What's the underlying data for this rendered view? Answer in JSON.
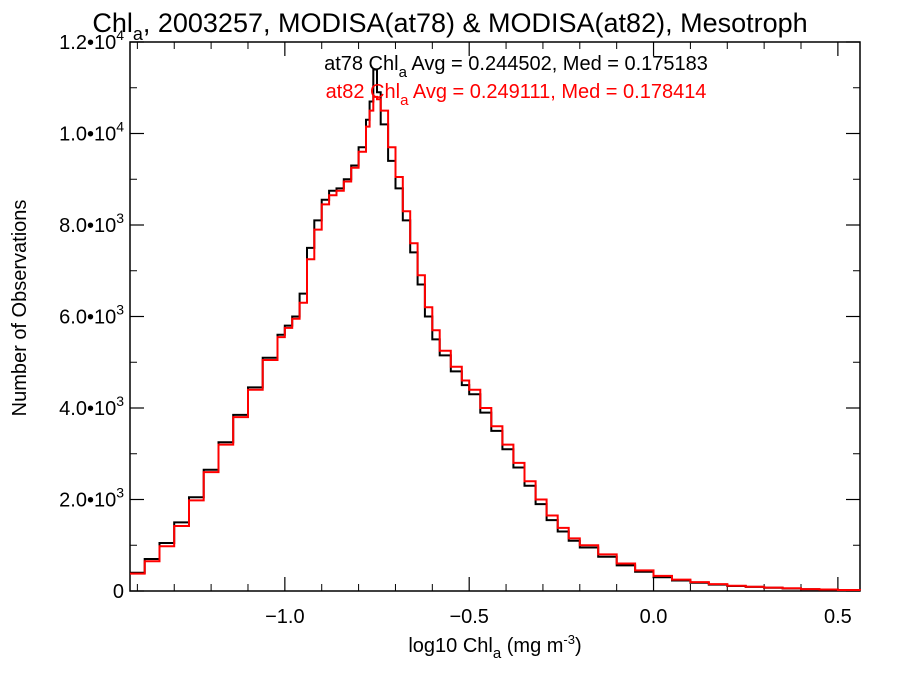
{
  "chart_data": {
    "type": "line",
    "step": true,
    "title": {
      "main": "Chl",
      "sub": "a",
      "rest": ", 2003257, MODISA(at78) & MODISA(at82), Mesotroph"
    },
    "xlabel": {
      "main": "log10 Chl",
      "sub": "a",
      "rest": " (mg m",
      "sup": "-3",
      "end": ")"
    },
    "ylabel": "Number of Observations",
    "xlim": [
      -1.42,
      0.56
    ],
    "ylim": [
      0,
      12000
    ],
    "x_ticks": [
      {
        "value": -1.0,
        "label": "−1.0"
      },
      {
        "value": -0.5,
        "label": "−0.5"
      },
      {
        "value": 0.0,
        "label": "0.0"
      },
      {
        "value": 0.5,
        "label": "0.5"
      }
    ],
    "y_ticks": [
      {
        "value": 0,
        "label": "0",
        "exp": ""
      },
      {
        "value": 2000,
        "label": "2.0•10",
        "exp": "3"
      },
      {
        "value": 4000,
        "label": "4.0•10",
        "exp": "3"
      },
      {
        "value": 6000,
        "label": "6.0•10",
        "exp": "3"
      },
      {
        "value": 8000,
        "label": "8.0•10",
        "exp": "3"
      },
      {
        "value": 10000,
        "label": "1.0•10",
        "exp": "4"
      },
      {
        "value": 12000,
        "label": "1.2•10",
        "exp": "4"
      }
    ],
    "legend": [
      {
        "pre": "at78 Chl",
        "sub": "a",
        "post": " Avg = 0.244502, Med = 0.175183",
        "color": "#000000"
      },
      {
        "pre": "at82 Chl",
        "sub": "a",
        "post": " Avg = 0.249111, Med = 0.178414",
        "color": "#ff0000"
      }
    ],
    "series": [
      {
        "color": "#000000",
        "x": [
          -1.42,
          -1.38,
          -1.34,
          -1.3,
          -1.26,
          -1.22,
          -1.18,
          -1.14,
          -1.1,
          -1.06,
          -1.02,
          -1.0,
          -0.98,
          -0.96,
          -0.94,
          -0.92,
          -0.9,
          -0.88,
          -0.86,
          -0.84,
          -0.82,
          -0.8,
          -0.78,
          -0.77,
          -0.76,
          -0.75,
          -0.74,
          -0.72,
          -0.7,
          -0.68,
          -0.66,
          -0.64,
          -0.62,
          -0.6,
          -0.58,
          -0.55,
          -0.52,
          -0.5,
          -0.47,
          -0.44,
          -0.41,
          -0.38,
          -0.35,
          -0.32,
          -0.29,
          -0.26,
          -0.23,
          -0.2,
          -0.15,
          -0.1,
          -0.05,
          0.0,
          0.05,
          0.1,
          0.15,
          0.2,
          0.25,
          0.3,
          0.35,
          0.4,
          0.45,
          0.5,
          0.56
        ],
        "y": [
          400,
          700,
          1050,
          1500,
          2050,
          2650,
          3250,
          3850,
          4450,
          5100,
          5600,
          5800,
          6000,
          6500,
          7500,
          8100,
          8550,
          8750,
          8800,
          9000,
          9300,
          9700,
          10300,
          10700,
          11400,
          10900,
          10200,
          9400,
          8800,
          8100,
          7400,
          6700,
          6000,
          5500,
          5150,
          4800,
          4500,
          4300,
          3900,
          3500,
          3100,
          2700,
          2300,
          1900,
          1550,
          1300,
          1100,
          950,
          750,
          560,
          420,
          300,
          230,
          180,
          140,
          110,
          90,
          70,
          55,
          40,
          30,
          20,
          10
        ]
      },
      {
        "color": "#ff0000",
        "x": [
          -1.42,
          -1.38,
          -1.34,
          -1.3,
          -1.26,
          -1.22,
          -1.18,
          -1.14,
          -1.1,
          -1.06,
          -1.02,
          -1.0,
          -0.98,
          -0.96,
          -0.94,
          -0.92,
          -0.9,
          -0.88,
          -0.86,
          -0.84,
          -0.82,
          -0.8,
          -0.78,
          -0.77,
          -0.76,
          -0.75,
          -0.74,
          -0.72,
          -0.7,
          -0.68,
          -0.66,
          -0.64,
          -0.62,
          -0.6,
          -0.58,
          -0.55,
          -0.52,
          -0.5,
          -0.47,
          -0.44,
          -0.41,
          -0.38,
          -0.35,
          -0.32,
          -0.29,
          -0.26,
          -0.23,
          -0.2,
          -0.15,
          -0.1,
          -0.05,
          0.0,
          0.05,
          0.1,
          0.15,
          0.2,
          0.25,
          0.3,
          0.35,
          0.4,
          0.45,
          0.5,
          0.56
        ],
        "y": [
          380,
          650,
          980,
          1420,
          1980,
          2600,
          3200,
          3800,
          4400,
          5050,
          5550,
          5750,
          5950,
          6300,
          7250,
          7900,
          8450,
          8650,
          8750,
          8950,
          9250,
          9600,
          10150,
          10500,
          10800,
          10750,
          10500,
          9700,
          9050,
          8300,
          7600,
          6900,
          6200,
          5700,
          5250,
          4900,
          4600,
          4400,
          4000,
          3600,
          3200,
          2800,
          2400,
          2000,
          1650,
          1380,
          1150,
          1000,
          800,
          600,
          450,
          330,
          250,
          195,
          150,
          115,
          95,
          75,
          58,
          42,
          32,
          22,
          12
        ]
      }
    ]
  }
}
